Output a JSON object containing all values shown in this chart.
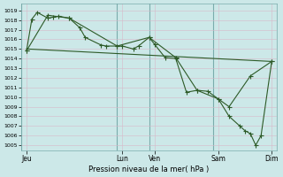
{
  "background_color": "#cce8e8",
  "grid_color": "#b8d8d8",
  "line_color": "#2d5a27",
  "ylabel_ticks": [
    1005,
    1006,
    1007,
    1008,
    1009,
    1010,
    1011,
    1012,
    1013,
    1014,
    1015,
    1016,
    1017,
    1018,
    1019
  ],
  "ylim": [
    1004.5,
    1019.7
  ],
  "xlim": [
    0,
    24
  ],
  "xlabel": "Pression niveau de la mer( hPa )",
  "day_labels": [
    "Jeu",
    "Lun",
    "Ven",
    "Sam",
    "Dim"
  ],
  "day_tick_x": [
    0.5,
    9.5,
    12.5,
    18.5,
    23.5
  ],
  "vline_positions": [
    0,
    9,
    12,
    18,
    24
  ],
  "line1_x": [
    0.5,
    1.0,
    1.5,
    2.5,
    3.0,
    3.5,
    4.5,
    5.5,
    6.0,
    7.5,
    8.0,
    9.0,
    9.5,
    10.5,
    11.0,
    12.0,
    12.5,
    13.5,
    14.5,
    15.5,
    16.5,
    17.5,
    18.5,
    19.5,
    20.5,
    21.0,
    21.5,
    22.0,
    22.5,
    23.5
  ],
  "line1_y": [
    1014.8,
    1018.1,
    1018.8,
    1018.2,
    1018.3,
    1018.4,
    1018.2,
    1017.2,
    1016.2,
    1015.4,
    1015.3,
    1015.3,
    1015.3,
    1015.0,
    1015.3,
    1016.2,
    1015.5,
    1014.1,
    1014.0,
    1010.5,
    1010.7,
    1010.6,
    1009.8,
    1008.0,
    1007.0,
    1006.5,
    1006.2,
    1005.0,
    1006.0,
    1013.7
  ],
  "line2_x": [
    0.5,
    23.5
  ],
  "line2_y": [
    1015.0,
    1013.7
  ],
  "line3_x": [
    0.5,
    2.5,
    4.5,
    9.0,
    12.0,
    14.5,
    16.5,
    18.5,
    19.5,
    21.5,
    23.5
  ],
  "line3_y": [
    1014.8,
    1018.5,
    1018.2,
    1015.3,
    1016.2,
    1014.1,
    1010.7,
    1009.8,
    1009.0,
    1012.2,
    1013.7
  ]
}
